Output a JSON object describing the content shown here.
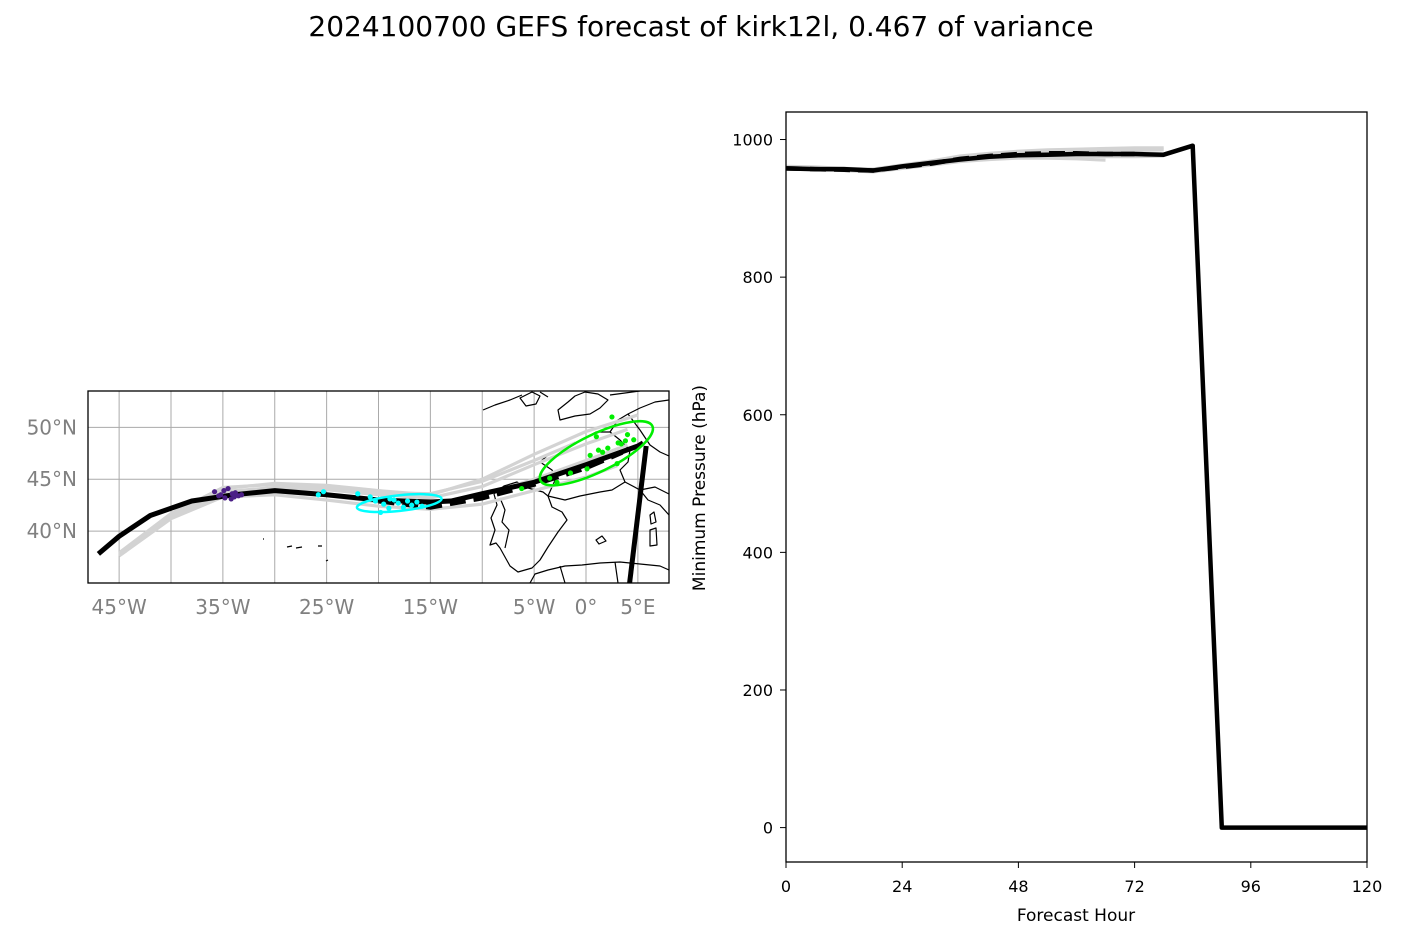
{
  "title": "2024100700 GEFS forecast of kirk12l, 0.467 of variance",
  "chart_data": [
    {
      "type": "map",
      "name": "track-map",
      "lon_range": [
        -48,
        8
      ],
      "lat_range": [
        35,
        53.5
      ],
      "lon_ticks": [
        -45,
        -35,
        -25,
        -15,
        -5,
        0,
        5
      ],
      "lon_tick_labels": [
        "45°W",
        "35°W",
        "25°W",
        "15°W",
        "5°W",
        "0°",
        "5°E"
      ],
      "lat_ticks": [
        40,
        45,
        50
      ],
      "lat_tick_labels": [
        "40°N",
        "45°N",
        "50°N"
      ],
      "grid_lons": [
        -45,
        -40,
        -35,
        -30,
        -25,
        -20,
        -15,
        -10,
        -5,
        0,
        5
      ],
      "grid_lats": [
        40,
        45,
        50
      ],
      "colors": {
        "ensemble": "#d3d3d3",
        "track": "#000000",
        "group1": "#4b1f86",
        "group2": "#00ffff",
        "group3": "#00ee00"
      },
      "ensemble_tracks": [
        [
          [
            -45,
            37.9
          ],
          [
            -40,
            41.6
          ],
          [
            -35,
            44.1
          ],
          [
            -30,
            44.6
          ],
          [
            -25,
            44.4
          ],
          [
            -20,
            43.9
          ],
          [
            -15,
            43.5
          ],
          [
            -10,
            45.0
          ],
          [
            -5,
            47.4
          ],
          [
            0,
            49.6
          ],
          [
            5,
            51.2
          ]
        ],
        [
          [
            -45,
            37.6
          ],
          [
            -40,
            41.2
          ],
          [
            -35,
            43.3
          ],
          [
            -30,
            43.5
          ],
          [
            -25,
            43.0
          ],
          [
            -20,
            42.4
          ],
          [
            -15,
            42.1
          ],
          [
            -10,
            42.6
          ],
          [
            -5,
            43.9
          ],
          [
            0,
            45.2
          ],
          [
            3,
            46.3
          ]
        ],
        [
          [
            -45,
            37.8
          ],
          [
            -40,
            41.5
          ],
          [
            -35,
            43.8
          ],
          [
            -30,
            44.2
          ],
          [
            -25,
            44.0
          ],
          [
            -20,
            43.5
          ],
          [
            -15,
            43.2
          ],
          [
            -10,
            44.3
          ],
          [
            -5,
            46.4
          ],
          [
            0,
            48.4
          ],
          [
            4,
            49.8
          ]
        ],
        [
          [
            -45,
            37.7
          ],
          [
            -40,
            41.3
          ],
          [
            -35,
            43.5
          ],
          [
            -30,
            43.8
          ],
          [
            -25,
            43.4
          ],
          [
            -20,
            42.8
          ],
          [
            -15,
            42.6
          ],
          [
            -10,
            43.4
          ],
          [
            -5,
            45.0
          ],
          [
            0,
            46.8
          ],
          [
            4,
            48.3
          ]
        ],
        [
          [
            -45,
            37.9
          ],
          [
            -40,
            41.7
          ],
          [
            -35,
            44.2
          ],
          [
            -30,
            44.5
          ],
          [
            -25,
            44.2
          ],
          [
            -20,
            43.7
          ],
          [
            -15,
            43.6
          ],
          [
            -10,
            44.8
          ],
          [
            -5,
            46.8
          ],
          [
            -1,
            48.5
          ]
        ]
      ],
      "mean_track": [
        [
          -47,
          37.8
        ],
        [
          -45,
          39.5
        ],
        [
          -42,
          41.5
        ],
        [
          -38,
          42.9
        ],
        [
          -34,
          43.5
        ],
        [
          -30,
          43.9
        ],
        [
          -25,
          43.5
        ],
        [
          -20,
          43.0
        ],
        [
          -15,
          42.8
        ],
        [
          -13,
          42.9
        ],
        [
          -10,
          43.6
        ],
        [
          -5,
          44.7
        ],
        [
          0,
          46.4
        ],
        [
          5,
          48.2
        ],
        [
          5.5,
          48.5
        ]
      ],
      "dashed_track": [
        [
          -20,
          42.9
        ],
        [
          -15,
          42.3
        ],
        [
          -10,
          43.2
        ],
        [
          -5,
          44.5
        ],
        [
          0,
          46.1
        ],
        [
          3.5,
          47.6
        ]
      ],
      "spike": [
        [
          5.8,
          48.2
        ],
        [
          4.2,
          35.0
        ]
      ],
      "groups": [
        {
          "name": "group1",
          "points": [
            [
              -35.8,
              43.8
            ],
            [
              -35.2,
              43.5
            ],
            [
              -34.8,
              43.2
            ],
            [
              -34.5,
              44.1
            ],
            [
              -34.1,
              43.6
            ],
            [
              -33.9,
              43.3
            ],
            [
              -33.5,
              43.4
            ],
            [
              -33.2,
              43.5
            ],
            [
              -34.9,
              43.9
            ],
            [
              -35.4,
              43.4
            ],
            [
              -34.2,
              43.1
            ],
            [
              -33.8,
              43.7
            ]
          ]
        },
        {
          "name": "group2",
          "points": [
            [
              -25.8,
              43.5
            ],
            [
              -25.3,
              43.8
            ],
            [
              -22.0,
              43.6
            ],
            [
              -20.8,
              43.3
            ],
            [
              -19.5,
              42.6
            ],
            [
              -19.0,
              42.2
            ],
            [
              -18.5,
              43.0
            ],
            [
              -18.1,
              42.7
            ],
            [
              -17.6,
              42.3
            ],
            [
              -17.2,
              42.9
            ],
            [
              -16.8,
              42.5
            ],
            [
              -16.3,
              42.8
            ],
            [
              -15.8,
              42.4
            ],
            [
              -19.8,
              41.8
            ],
            [
              -18.9,
              43.1
            ],
            [
              -20.3,
              42.9
            ]
          ]
        },
        {
          "name": "group3",
          "points": [
            [
              -6.2,
              44.1
            ],
            [
              -3.5,
              45.1
            ],
            [
              -2.8,
              44.7
            ],
            [
              -1.5,
              45.6
            ],
            [
              0.1,
              46.0
            ],
            [
              0.4,
              47.3
            ],
            [
              1.2,
              47.8
            ],
            [
              1.0,
              49.1
            ],
            [
              2.1,
              48.0
            ],
            [
              3.1,
              48.5
            ],
            [
              3.4,
              48.4
            ],
            [
              3.8,
              48.7
            ],
            [
              4.0,
              49.3
            ],
            [
              4.6,
              48.8
            ],
            [
              3.0,
              46.5
            ],
            [
              2.5,
              51.0
            ],
            [
              1.6,
              47.6
            ]
          ]
        }
      ],
      "ellipses": [
        {
          "name": "group2",
          "center": [
            -18.0,
            42.7
          ],
          "rx_deg": 4.1,
          "ry_deg": 0.75,
          "angle_deg": -6
        },
        {
          "name": "group3",
          "center": [
            1.0,
            47.5
          ],
          "rx_deg": 6.0,
          "ry_deg": 1.8,
          "angle_deg": -26
        }
      ]
    },
    {
      "type": "line",
      "name": "pressure-chart",
      "xlabel": "Forecast Hour",
      "ylabel": "Minimum Pressure (hPa)",
      "xlim": [
        0,
        120
      ],
      "ylim": [
        -50,
        1040
      ],
      "xticks": [
        0,
        24,
        48,
        72,
        96,
        120
      ],
      "yticks": [
        0,
        200,
        400,
        600,
        800,
        1000
      ],
      "ensemble_series": [
        {
          "x": [
            0,
            6,
            12,
            18,
            24,
            30,
            36,
            42,
            48,
            54,
            60,
            66,
            72,
            78
          ],
          "y": [
            960,
            959,
            958,
            956,
            962,
            967,
            974,
            978,
            981,
            983,
            984,
            984,
            984,
            985
          ]
        },
        {
          "x": [
            0,
            6,
            12,
            18,
            24,
            30,
            36,
            42,
            48,
            54,
            60,
            66
          ],
          "y": [
            957,
            956,
            955,
            953,
            958,
            963,
            968,
            971,
            973,
            973,
            972,
            970
          ]
        },
        {
          "x": [
            0,
            6,
            12,
            18,
            24,
            30,
            36,
            42,
            48,
            54,
            60,
            66,
            72,
            78
          ],
          "y": [
            958,
            957,
            956,
            955,
            960,
            965,
            970,
            974,
            976,
            977,
            976,
            975,
            975,
            976
          ]
        },
        {
          "x": [
            0,
            6,
            12,
            18,
            24,
            30,
            36,
            42,
            48,
            54,
            60,
            66
          ],
          "y": [
            959,
            958,
            957,
            954,
            959,
            964,
            971,
            975,
            978,
            979,
            978,
            976
          ]
        },
        {
          "x": [
            0,
            6,
            12,
            18,
            24,
            30,
            36,
            42,
            48,
            54,
            60,
            66,
            72,
            78
          ],
          "y": [
            961,
            960,
            958,
            957,
            963,
            969,
            976,
            980,
            983,
            985,
            986,
            987,
            988,
            988
          ]
        }
      ],
      "dashed_series": {
        "x": [
          0,
          6,
          12,
          18,
          24,
          30,
          36,
          42,
          48,
          54,
          60,
          66,
          72
        ],
        "y": [
          958,
          957,
          956,
          955,
          960,
          965,
          972,
          976,
          979,
          980,
          980,
          979,
          979
        ]
      },
      "mean_series": {
        "x": [
          0,
          6,
          12,
          18,
          24,
          30,
          36,
          42,
          48,
          54,
          60,
          66,
          72,
          78,
          84,
          90,
          96,
          102,
          108,
          114,
          120
        ],
        "y": [
          958,
          957,
          957,
          955,
          961,
          966,
          971,
          975,
          977,
          978,
          979,
          979,
          979,
          978,
          991,
          0,
          0,
          0,
          0,
          0,
          0
        ]
      }
    }
  ]
}
